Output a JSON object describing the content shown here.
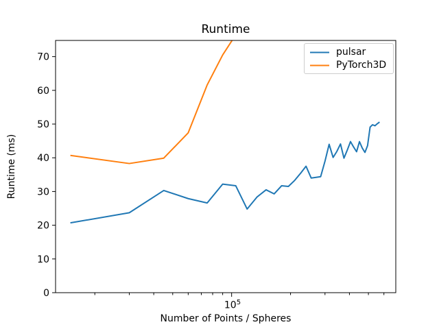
{
  "figure": {
    "background": "#ffffff",
    "text_color": "#000000"
  },
  "chart_data": {
    "type": "line",
    "title": "Runtime",
    "xlabel": "Number of Points / Spheres",
    "ylabel": "Runtime (ms)",
    "x_scale": "log",
    "grid": false,
    "legend_position": "upper right",
    "xlim": [
      12600,
      690000
    ],
    "ylim": [
      0,
      74.8
    ],
    "y_ticks": [
      0,
      10,
      20,
      30,
      40,
      50,
      60,
      70
    ],
    "x_major_ticks": [
      {
        "value": 100000,
        "base": "10",
        "exponent": "5"
      }
    ],
    "x_minor_ticks": [
      20000,
      30000,
      40000,
      50000,
      60000,
      70000,
      80000,
      90000,
      200000,
      300000,
      400000,
      500000,
      600000
    ],
    "series": [
      {
        "name": "pulsar",
        "color": "#1f77b4",
        "x": [
          15000,
          30000,
          45000,
          60000,
          75000,
          90000,
          105000,
          120000,
          135000,
          150000,
          165000,
          180000,
          195000,
          210000,
          225000,
          240000,
          255000,
          270000,
          285000,
          300000,
          315000,
          330000,
          345000,
          360000,
          375000,
          390000,
          405000,
          420000,
          435000,
          450000,
          465000,
          480000,
          495000,
          510000,
          525000,
          540000,
          555000,
          570000
        ],
        "y": [
          20.7,
          23.7,
          30.3,
          27.9,
          26.6,
          32.2,
          31.7,
          24.8,
          28.4,
          30.5,
          29.3,
          31.7,
          31.5,
          33.3,
          35.4,
          37.5,
          34.0,
          34.2,
          34.4,
          39.0,
          44.0,
          40.1,
          41.9,
          44.1,
          39.9,
          42.3,
          44.8,
          43.2,
          41.8,
          44.8,
          42.9,
          41.6,
          43.6,
          49.1,
          49.8,
          49.5,
          50.1,
          50.6
        ]
      },
      {
        "name": "PyTorch3D",
        "color": "#ff7f0e",
        "x": [
          15000,
          30000,
          45000,
          60000,
          75000,
          90000,
          105000
        ],
        "y": [
          40.7,
          38.3,
          39.9,
          47.4,
          61.6,
          70.5,
          76.5
        ]
      }
    ]
  }
}
